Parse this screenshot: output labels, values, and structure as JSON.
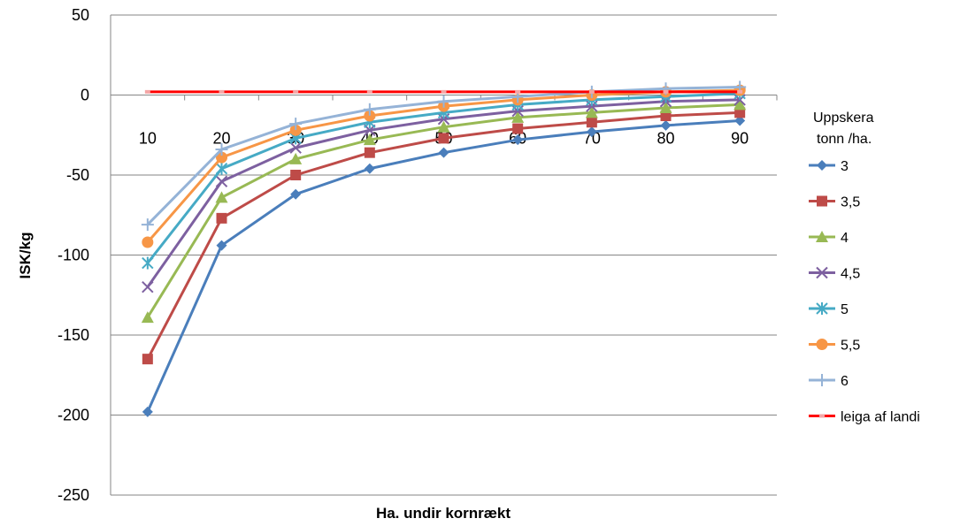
{
  "chart_data": {
    "type": "line",
    "title": "",
    "xlabel": "Ha. undir kornrækt",
    "ylabel": "ISK/kg",
    "x": [
      10,
      20,
      30,
      40,
      50,
      60,
      70,
      80,
      90
    ],
    "ylim": [
      -250,
      50
    ],
    "yticks": [
      50,
      0,
      -50,
      -100,
      -150,
      -200,
      -250
    ],
    "grid": true,
    "legend_position": "right",
    "legend_title": [
      "Uppskera",
      "tonn /ha."
    ],
    "series": [
      {
        "name": "3",
        "color": "#4A7EBB",
        "marker": "diamond",
        "values": [
          -198,
          -94,
          -62,
          -46,
          -36,
          -28,
          -23,
          -19,
          -16
        ]
      },
      {
        "name": "3,5",
        "color": "#BE4B48",
        "marker": "square",
        "values": [
          -165,
          -77,
          -50,
          -36,
          -27,
          -21,
          -17,
          -13,
          -11
        ]
      },
      {
        "name": "4",
        "color": "#98B954",
        "marker": "triangle",
        "values": [
          -139,
          -64,
          -40,
          -28,
          -20,
          -14,
          -11,
          -8,
          -6
        ]
      },
      {
        "name": "4,5",
        "color": "#7D60A0",
        "marker": "x",
        "values": [
          -120,
          -54,
          -33,
          -22,
          -15,
          -10,
          -7,
          -4,
          -3
        ]
      },
      {
        "name": "5",
        "color": "#46AAC5",
        "marker": "star",
        "values": [
          -105,
          -46,
          -27,
          -17,
          -11,
          -6,
          -3,
          -1,
          1
        ]
      },
      {
        "name": "5,5",
        "color": "#F79646",
        "marker": "circle",
        "values": [
          -92,
          -39,
          -22,
          -13,
          -7,
          -3,
          0,
          2,
          3
        ]
      },
      {
        "name": "6",
        "color": "#95B3D7",
        "marker": "plus",
        "values": [
          -81,
          -34,
          -18,
          -9,
          -4,
          -1,
          2,
          4,
          5
        ]
      },
      {
        "name": "leiga af landi",
        "color": "#FF0000",
        "marker": "dash",
        "values": [
          2,
          2,
          2,
          2,
          2,
          2,
          2,
          2,
          2
        ]
      }
    ]
  }
}
